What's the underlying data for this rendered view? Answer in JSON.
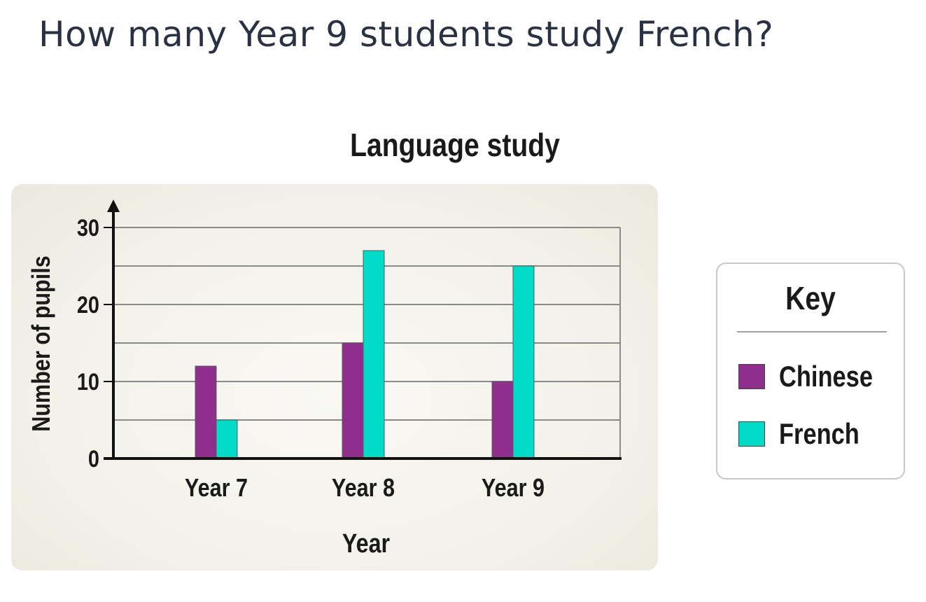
{
  "question": "How many Year 9 students study French?",
  "key": {
    "title": "Key"
  },
  "chart_data": {
    "type": "bar",
    "title": "Language study",
    "xlabel": "Year",
    "ylabel": "Number of pupils",
    "categories": [
      "Year 7",
      "Year 8",
      "Year 9"
    ],
    "series": [
      {
        "name": "Chinese",
        "color": "#8e2f8e",
        "values": [
          12,
          15,
          10
        ]
      },
      {
        "name": "French",
        "color": "#00dcc8",
        "values": [
          5,
          27,
          25
        ]
      }
    ],
    "ylim": [
      0,
      30
    ],
    "yticks": [
      0,
      10,
      20,
      30
    ],
    "grid_step": 5,
    "grid": true,
    "legend": "right"
  }
}
